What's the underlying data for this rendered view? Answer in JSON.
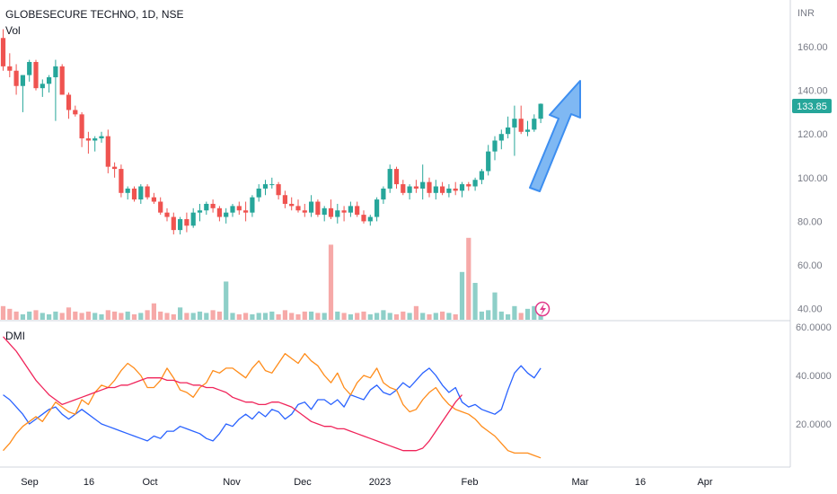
{
  "header": {
    "symbol": "GLOBESECURE TECHNO, 1D, NSE",
    "volume_label": "Vol"
  },
  "currency_label": "INR",
  "price_ticks": [
    "160.00",
    "140.00",
    "120.00",
    "100.00",
    "80.00",
    "60.00",
    "40.00"
  ],
  "last_price": "133.85",
  "dmi_label": "DMI",
  "dmi_ticks": [
    "60.0000",
    "40.0000",
    "20.0000"
  ],
  "x_ticks": [
    "Sep",
    "16",
    "Oct",
    "Nov",
    "Dec",
    "2023",
    "Feb",
    "Mar",
    "16",
    "Apr"
  ],
  "colors": {
    "up": "#26a69a",
    "down": "#ef5350",
    "vol_up": "#8ecfc8",
    "vol_down": "#f6a9a8",
    "plus_di": "#2962ff",
    "minus_di": "#ff8c1a",
    "adx": "#f0245a",
    "arrow": "#4a9df0",
    "last_price_bg": "#26a69a"
  },
  "chart_data": [
    {
      "type": "candlestick",
      "title": "GLOBESECURE TECHNO, 1D, NSE",
      "ylabel": "INR",
      "ylim": [
        38,
        170
      ],
      "candles": [
        [
          164,
          168,
          149,
          151
        ],
        [
          151,
          157,
          146,
          149
        ],
        [
          149,
          152,
          138,
          142
        ],
        [
          142,
          147,
          130,
          147
        ],
        [
          147,
          154,
          144,
          153
        ],
        [
          153,
          154,
          140,
          141
        ],
        [
          141,
          145,
          137,
          143
        ],
        [
          143,
          147,
          139,
          146
        ],
        [
          146,
          154,
          126,
          151
        ],
        [
          151,
          152,
          138,
          138
        ],
        [
          138,
          139,
          127,
          131
        ],
        [
          131,
          133,
          128,
          129
        ],
        [
          129,
          130,
          114,
          118
        ],
        [
          118,
          121,
          111,
          117
        ],
        [
          117,
          119,
          112,
          118
        ],
        [
          118,
          121,
          116,
          119
        ],
        [
          119,
          122,
          102,
          105
        ],
        [
          105,
          107,
          100,
          104
        ],
        [
          104,
          106,
          91,
          93
        ],
        [
          93,
          96,
          90,
          95
        ],
        [
          95,
          96,
          89,
          90
        ],
        [
          90,
          97,
          88,
          96
        ],
        [
          96,
          97,
          90,
          91
        ],
        [
          91,
          93,
          88,
          89
        ],
        [
          89,
          91,
          83,
          84
        ],
        [
          84,
          86,
          80,
          82
        ],
        [
          82,
          84,
          74,
          76
        ],
        [
          76,
          82,
          74,
          81
        ],
        [
          81,
          84,
          75,
          78
        ],
        [
          78,
          86,
          77,
          84
        ],
        [
          84,
          88,
          80,
          85
        ],
        [
          85,
          89,
          83,
          88
        ],
        [
          88,
          90,
          84,
          86
        ],
        [
          86,
          87,
          80,
          82
        ],
        [
          82,
          86,
          79,
          84
        ],
        [
          84,
          88,
          82,
          87
        ],
        [
          87,
          89,
          83,
          85
        ],
        [
          85,
          89,
          80,
          84
        ],
        [
          84,
          92,
          82,
          91
        ],
        [
          91,
          97,
          89,
          95
        ],
        [
          95,
          99,
          92,
          97
        ],
        [
          97,
          100,
          95,
          97
        ],
        [
          97,
          98,
          90,
          92
        ],
        [
          92,
          94,
          86,
          88
        ],
        [
          88,
          91,
          85,
          87
        ],
        [
          87,
          90,
          84,
          85
        ],
        [
          85,
          88,
          82,
          84
        ],
        [
          84,
          92,
          82,
          89
        ],
        [
          89,
          90,
          82,
          83
        ],
        [
          83,
          87,
          80,
          86
        ],
        [
          86,
          90,
          81,
          82
        ],
        [
          82,
          88,
          79,
          85
        ],
        [
          85,
          87,
          80,
          84
        ],
        [
          84,
          89,
          82,
          87
        ],
        [
          87,
          89,
          82,
          83
        ],
        [
          83,
          85,
          79,
          80
        ],
        [
          80,
          83,
          78,
          82
        ],
        [
          82,
          91,
          80,
          90
        ],
        [
          90,
          96,
          88,
          95
        ],
        [
          95,
          106,
          93,
          104
        ],
        [
          104,
          105,
          95,
          97
        ],
        [
          97,
          99,
          92,
          93
        ],
        [
          93,
          97,
          90,
          96
        ],
        [
          96,
          99,
          93,
          95
        ],
        [
          95,
          106,
          90,
          98
        ],
        [
          98,
          100,
          91,
          93
        ],
        [
          93,
          99,
          90,
          96
        ],
        [
          96,
          98,
          92,
          93
        ],
        [
          93,
          97,
          91,
          95
        ],
        [
          95,
          98,
          92,
          94
        ],
        [
          94,
          98,
          91,
          97
        ],
        [
          97,
          98,
          94,
          96
        ],
        [
          96,
          100,
          94,
          99
        ],
        [
          99,
          104,
          97,
          103
        ],
        [
          103,
          115,
          101,
          112
        ],
        [
          112,
          119,
          108,
          117
        ],
        [
          117,
          122,
          113,
          120
        ],
        [
          120,
          128,
          118,
          123
        ],
        [
          123,
          133,
          110,
          127
        ],
        [
          127,
          133,
          120,
          121
        ],
        [
          121,
          126,
          119,
          122
        ],
        [
          122,
          129,
          121,
          127
        ],
        [
          127,
          134,
          125,
          133.85
        ]
      ],
      "volume": [
        10,
        8,
        6,
        4,
        6,
        7,
        5,
        4,
        6,
        5,
        9,
        6,
        5,
        6,
        5,
        4,
        7,
        6,
        5,
        6,
        4,
        5,
        7,
        12,
        6,
        5,
        4,
        9,
        5,
        5,
        6,
        5,
        7,
        6,
        28,
        5,
        4,
        5,
        4,
        5,
        5,
        6,
        4,
        7,
        5,
        4,
        6,
        6,
        5,
        5,
        55,
        6,
        5,
        4,
        5,
        6,
        4,
        5,
        7,
        5,
        4,
        6,
        5,
        10,
        5,
        4,
        5,
        6,
        5,
        4,
        35,
        60,
        27,
        6,
        7,
        20,
        6,
        4,
        10,
        5,
        8,
        10,
        6
      ]
    },
    {
      "type": "line",
      "title": "DMI",
      "ylim": [
        4,
        60
      ],
      "series": [
        {
          "values": [
            32,
            30,
            27,
            24,
            20,
            22,
            24,
            26,
            27,
            24,
            22,
            24,
            26,
            24,
            22,
            20,
            19,
            18,
            17,
            16,
            15,
            14,
            13,
            15,
            14,
            17,
            17,
            19,
            18,
            17,
            16,
            14,
            13,
            16,
            20,
            19,
            22,
            24,
            22,
            25,
            23,
            26,
            25,
            22,
            24,
            28,
            29,
            26,
            30,
            30,
            28,
            30,
            27,
            32,
            31,
            30,
            34,
            36,
            33,
            32,
            34,
            37,
            35,
            38,
            41,
            43,
            40,
            36,
            33,
            35,
            29,
            27,
            28,
            26,
            25,
            24,
            26,
            34,
            41,
            44,
            41,
            39,
            43
          ]
        },
        {
          "values": [
            9,
            12,
            16,
            19,
            21,
            23,
            21,
            25,
            29,
            27,
            25,
            24,
            30,
            28,
            33,
            36,
            35,
            38,
            42,
            45,
            43,
            40,
            35,
            35,
            38,
            43,
            39,
            34,
            33,
            31,
            35,
            37,
            42,
            41,
            43,
            43,
            41,
            39,
            43,
            46,
            42,
            41,
            45,
            49,
            47,
            45,
            49,
            46,
            44,
            40,
            37,
            41,
            35,
            32,
            37,
            40,
            39,
            43,
            37,
            35,
            34,
            28,
            25,
            26,
            30,
            33,
            35,
            31,
            28,
            26,
            25,
            24,
            22,
            19,
            17,
            15,
            12,
            9,
            8,
            8,
            8,
            7,
            6
          ]
        },
        {
          "values": [
            56,
            53,
            50,
            46,
            42,
            38,
            35,
            32,
            30,
            28,
            29,
            30,
            31,
            32,
            33,
            34,
            35,
            35,
            36,
            36,
            37,
            38,
            39,
            39,
            39,
            38,
            38,
            37,
            37,
            36,
            36,
            35,
            35,
            34,
            33,
            31,
            30,
            29,
            29,
            28,
            28,
            29,
            29,
            28,
            27,
            25,
            23,
            21,
            20,
            19,
            19,
            18,
            18,
            17,
            16,
            15,
            14,
            13,
            12,
            11,
            10,
            9,
            9,
            9,
            10,
            13,
            17,
            21,
            25,
            29,
            32
          ]
        }
      ],
      "series_roles": [
        "plus_di",
        "minus_di",
        "adx"
      ]
    }
  ]
}
